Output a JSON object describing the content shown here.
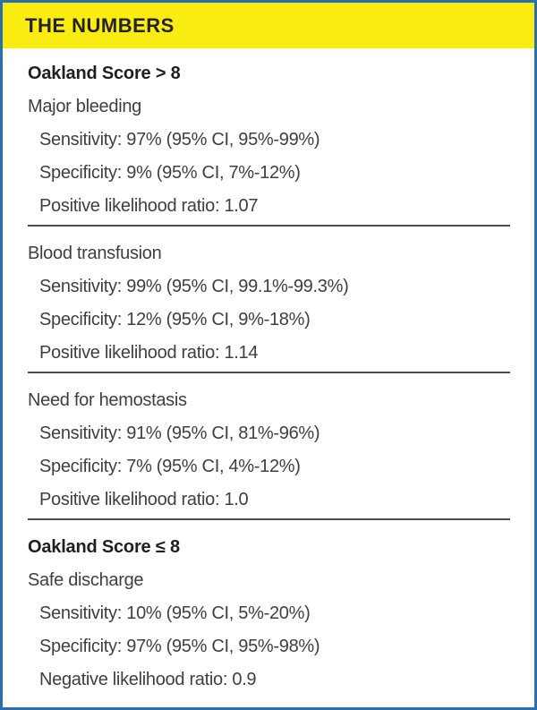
{
  "panel": {
    "title": "THE NUMBERS",
    "colors": {
      "header_bg": "#F8EC10",
      "border": "#2B6FAE",
      "divider": "#4D4D4F",
      "body_text": "#3F3F41",
      "heading_text": "#1F1F21"
    },
    "groups": [
      {
        "heading": "Oakland Score > 8",
        "sections": [
          {
            "label": "Major bleeding",
            "stats": [
              "Sensitivity: 97% (95% CI, 95%-99%)",
              "Specificity: 9% (95% CI, 7%-12%)",
              "Positive likelihood ratio: 1.07"
            ]
          },
          {
            "label": "Blood transfusion",
            "stats": [
              "Sensitivity: 99% (95% CI, 99.1%-99.3%)",
              "Specificity: 12% (95% CI, 9%-18%)",
              "Positive likelihood ratio: 1.14"
            ]
          },
          {
            "label": "Need for hemostasis",
            "stats": [
              "Sensitivity: 91% (95% CI, 81%-96%)",
              "Specificity: 7% (95% CI, 4%-12%)",
              "Positive likelihood ratio: 1.0"
            ]
          }
        ]
      },
      {
        "heading": "Oakland Score ≤ 8",
        "sections": [
          {
            "label": "Safe discharge",
            "stats": [
              "Sensitivity: 10% (95% CI, 5%-20%)",
              "Specificity: 97% (95% CI, 95%-98%)",
              "Negative likelihood ratio: 0.9"
            ]
          }
        ]
      }
    ]
  }
}
